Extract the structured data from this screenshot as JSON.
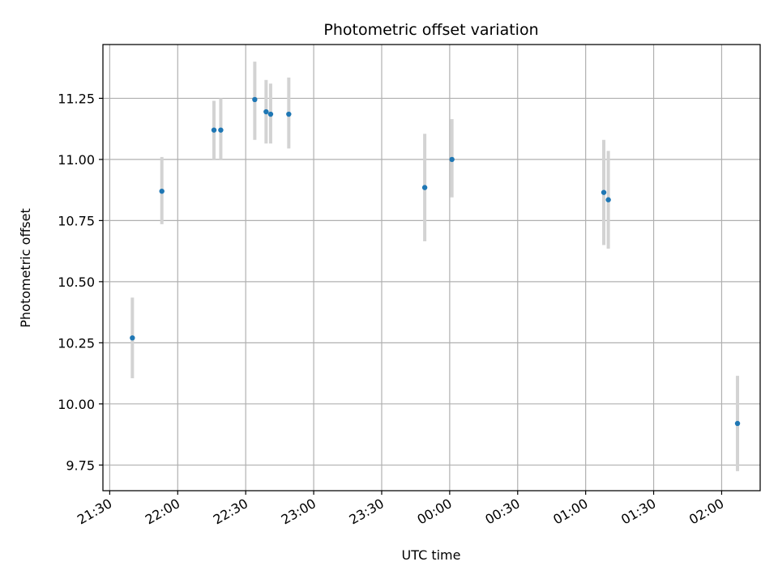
{
  "chart_data": {
    "type": "scatter",
    "title": "Photometric offset variation",
    "xlabel": "UTC time",
    "ylabel": "Photometric offset",
    "x_ticks": [
      "21:30",
      "22:00",
      "22:30",
      "23:00",
      "23:30",
      "00:00",
      "00:30",
      "01:00",
      "01:30",
      "02:00"
    ],
    "y_ticks": [
      "9.75",
      "10.00",
      "10.25",
      "10.50",
      "10.75",
      "11.00",
      "11.25"
    ],
    "xlim_minutes_after_2130": [
      -3,
      287
    ],
    "ylim": [
      9.645,
      11.47
    ],
    "grid": true,
    "colors": {
      "point": "#1f77b4",
      "errorbar": "#d3d3d3",
      "grid": "#b0b0b0"
    },
    "points": [
      {
        "time": "21:40",
        "offset": 10.27,
        "err_low": 10.105,
        "err_high": 10.435
      },
      {
        "time": "21:53",
        "offset": 10.87,
        "err_low": 10.735,
        "err_high": 11.01
      },
      {
        "time": "22:16",
        "offset": 11.12,
        "err_low": 11.0,
        "err_high": 11.24
      },
      {
        "time": "22:19",
        "offset": 11.12,
        "err_low": 11.0,
        "err_high": 11.25
      },
      {
        "time": "22:34",
        "offset": 11.245,
        "err_low": 11.08,
        "err_high": 11.4
      },
      {
        "time": "22:39",
        "offset": 11.195,
        "err_low": 11.065,
        "err_high": 11.325
      },
      {
        "time": "22:41",
        "offset": 11.185,
        "err_low": 11.065,
        "err_high": 11.31
      },
      {
        "time": "22:49",
        "offset": 11.185,
        "err_low": 11.045,
        "err_high": 11.335
      },
      {
        "time": "23:49",
        "offset": 10.885,
        "err_low": 10.665,
        "err_high": 11.105
      },
      {
        "time": "00:01",
        "offset": 11.0,
        "err_low": 10.845,
        "err_high": 11.165
      },
      {
        "time": "01:08",
        "offset": 10.865,
        "err_low": 10.65,
        "err_high": 11.08
      },
      {
        "time": "01:10",
        "offset": 10.835,
        "err_low": 10.635,
        "err_high": 11.035
      },
      {
        "time": "02:07",
        "offset": 9.92,
        "err_low": 9.725,
        "err_high": 10.115
      }
    ]
  }
}
